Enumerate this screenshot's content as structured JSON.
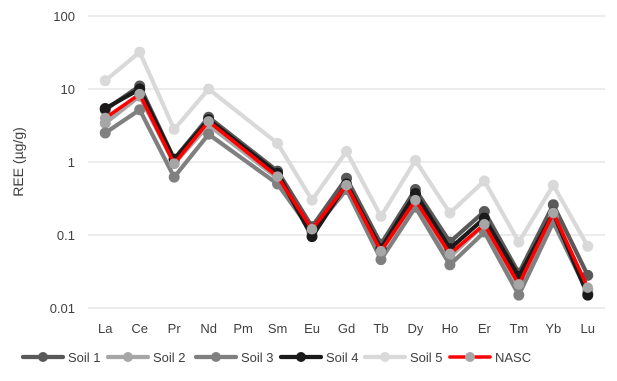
{
  "chart_data": {
    "type": "line",
    "title": "",
    "xlabel": "",
    "ylabel": "REE (µg/g)",
    "yscale": "log",
    "ylim": [
      0.01,
      100
    ],
    "y_ticks": [
      {
        "value": 0.01,
        "label": "0.01"
      },
      {
        "value": 0.1,
        "label": "0.1"
      },
      {
        "value": 1,
        "label": "1"
      },
      {
        "value": 10,
        "label": "10"
      },
      {
        "value": 100,
        "label": "100"
      }
    ],
    "grid": "horizontal",
    "legend_position": "bottom",
    "categories": [
      "La",
      "Ce",
      "Pr",
      "Nd",
      "Pm",
      "Sm",
      "Eu",
      "Gd",
      "Tb",
      "Dy",
      "Ho",
      "Er",
      "Tm",
      "Yb",
      "Lu"
    ],
    "series": [
      {
        "name": "Soil 1",
        "color": "#595959",
        "values": [
          5.2,
          11,
          1.1,
          4.1,
          null,
          0.75,
          0.13,
          0.6,
          0.075,
          0.42,
          0.08,
          0.21,
          0.03,
          0.26,
          0.028
        ]
      },
      {
        "name": "Soil 2",
        "color": "#a6a6a6",
        "values": [
          3.4,
          8,
          0.95,
          3.2,
          null,
          0.6,
          0.11,
          0.45,
          0.06,
          0.3,
          0.05,
          0.14,
          0.02,
          0.18,
          0.018
        ]
      },
      {
        "name": "Soil 3",
        "color": "#808080",
        "values": [
          2.5,
          5.2,
          0.62,
          2.4,
          null,
          0.5,
          0.11,
          0.42,
          0.046,
          0.24,
          0.039,
          0.11,
          0.015,
          0.15,
          0.016
        ]
      },
      {
        "name": "Soil 4",
        "color": "#1a1a1a",
        "values": [
          5.4,
          10,
          1.08,
          3.8,
          null,
          0.7,
          0.095,
          0.5,
          0.065,
          0.37,
          0.065,
          0.17,
          0.027,
          0.2,
          0.015
        ]
      },
      {
        "name": "Soil 5",
        "color": "#d9d9d9",
        "values": [
          13,
          32,
          2.8,
          10,
          null,
          1.8,
          0.3,
          1.4,
          0.18,
          1.05,
          0.2,
          0.55,
          0.08,
          0.48,
          0.07
        ]
      },
      {
        "name": "NASC",
        "color": "#ff0000",
        "marker_color": "#a6a6a6",
        "values": [
          4.0,
          8.5,
          0.95,
          3.6,
          null,
          0.63,
          0.12,
          0.48,
          0.06,
          0.3,
          0.055,
          0.14,
          0.021,
          0.2,
          0.019
        ]
      }
    ]
  }
}
